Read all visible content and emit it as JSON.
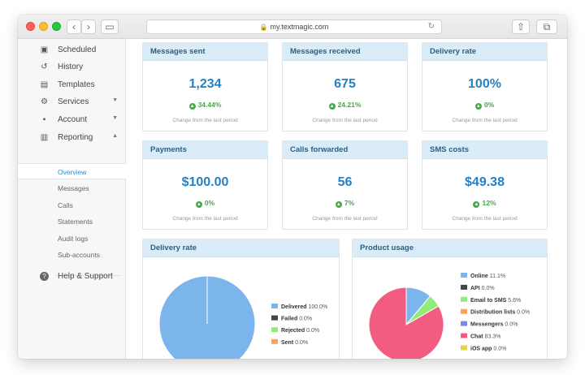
{
  "browser": {
    "url": "my.textmagic.com"
  },
  "sidebar": {
    "items": [
      {
        "label": "Scheduled",
        "icon": "calendar-icon"
      },
      {
        "label": "History",
        "icon": "history-icon"
      },
      {
        "label": "Templates",
        "icon": "clipboard-icon"
      },
      {
        "label": "Services",
        "icon": "gear-icon"
      },
      {
        "label": "Account",
        "icon": "user-icon"
      },
      {
        "label": "Reporting",
        "icon": "bar-chart-icon"
      }
    ],
    "subitems": [
      "Overview",
      "Messages",
      "Calls",
      "Statements",
      "Audit logs",
      "Sub-accounts"
    ],
    "help": {
      "label": "Help & Support",
      "icon": "question-icon"
    }
  },
  "stats": [
    {
      "title": "Messages sent",
      "value": "1,234",
      "change": "34.44%",
      "note": "Change from the last period"
    },
    {
      "title": "Messages received",
      "value": "675",
      "change": "24.21%",
      "note": "Change from the last period"
    },
    {
      "title": "Delivery rate",
      "value": "100%",
      "change": "0%",
      "note": "Change from the last period"
    },
    {
      "title": "Payments",
      "value": "$100.00",
      "change": "0%",
      "note": "Change from the last period"
    },
    {
      "title": "Calls forwarded",
      "value": "56",
      "change": "7%",
      "note": "Change from the last period"
    },
    {
      "title": "SMS costs",
      "value": "$49.38",
      "change": "12%",
      "note": "Change from the last period"
    }
  ],
  "chart_data": [
    {
      "type": "pie",
      "title": "Delivery rate",
      "series": [
        {
          "name": "Delivered",
          "label": "100.0%",
          "value": 100.0,
          "color": "#7cb5ec"
        },
        {
          "name": "Failed",
          "label": "0.0%",
          "value": 0.0,
          "color": "#434348"
        },
        {
          "name": "Rejected",
          "label": "0.0%",
          "value": 0.0,
          "color": "#90ed7d"
        },
        {
          "name": "Sent",
          "label": "0.0%",
          "value": 0.0,
          "color": "#f7a35c"
        }
      ],
      "legend": "right"
    },
    {
      "type": "pie",
      "title": "Product usage",
      "series": [
        {
          "name": "Online",
          "label": "11.1%",
          "value": 11.1,
          "color": "#7cb5ec"
        },
        {
          "name": "API",
          "label": "0.0%",
          "value": 0.0,
          "color": "#434348"
        },
        {
          "name": "Email to SMS",
          "label": "5.6%",
          "value": 5.6,
          "color": "#90ed7d"
        },
        {
          "name": "Distribution lists",
          "label": "0.0%",
          "value": 0.0,
          "color": "#f7a35c"
        },
        {
          "name": "Messengers",
          "label": "0.0%",
          "value": 0.0,
          "color": "#8085e9"
        },
        {
          "name": "Chat",
          "label": "83.3%",
          "value": 83.3,
          "color": "#f15c80"
        },
        {
          "name": "iOS app",
          "label": "0.0%",
          "value": 0.0,
          "color": "#e4d354"
        }
      ],
      "legend": "right"
    }
  ]
}
